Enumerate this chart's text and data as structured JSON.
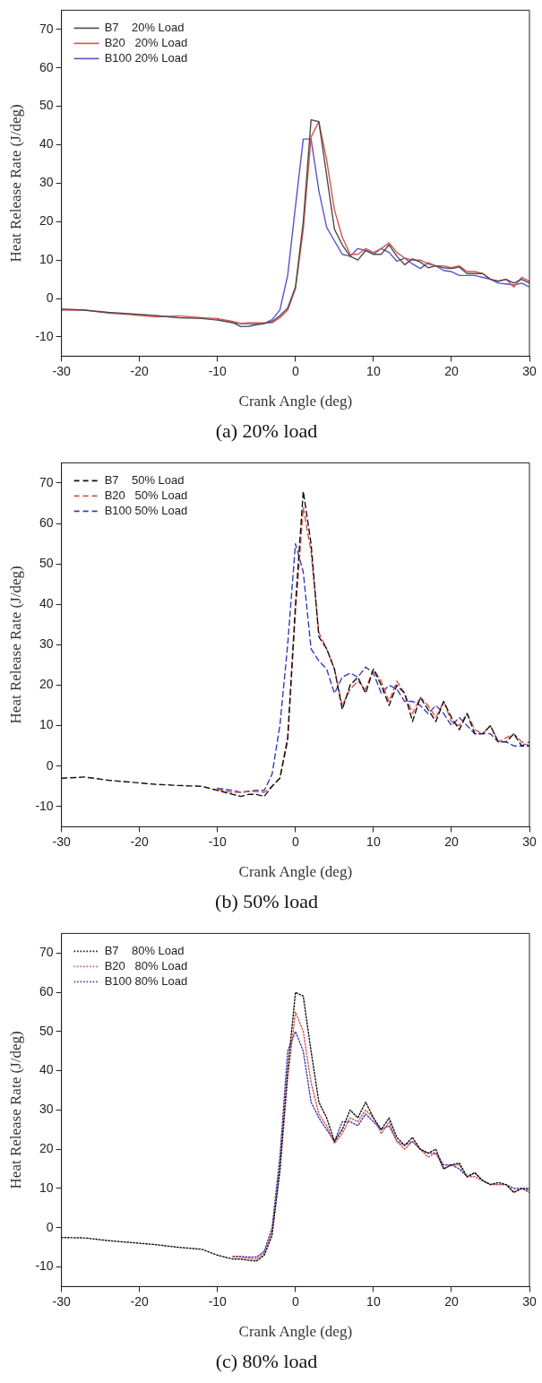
{
  "chart_data": [
    {
      "type": "line",
      "title": "(a) 20% load",
      "xlabel": "Crank Angle (deg)",
      "ylabel": "Heat Release Rate (J/deg)",
      "xlim": [
        -30,
        30
      ],
      "xticks": [
        -30,
        -20,
        -10,
        0,
        10,
        20,
        30
      ],
      "ylim": [
        -15,
        75
      ],
      "yticks": [
        -10,
        0,
        10,
        20,
        30,
        40,
        50,
        60,
        70
      ],
      "grid": false,
      "legend": "top left",
      "marker": "none",
      "line_style": "solid",
      "x": [
        -30,
        -27,
        -24,
        -21,
        -18,
        -15,
        -12,
        -10,
        -8,
        -7,
        -6,
        -5,
        -4,
        -3,
        -2,
        -1,
        0,
        1,
        2,
        3,
        4,
        5,
        6,
        7,
        8,
        9,
        10,
        11,
        12,
        13,
        14,
        15,
        16,
        17,
        18,
        19,
        20,
        21,
        22,
        23,
        24,
        25,
        26,
        27,
        28,
        29,
        30
      ],
      "series": [
        {
          "name": "B7    20% Load",
          "color": "#4d4d4d",
          "values": [
            -2.7,
            -3,
            -3.6,
            -4,
            -4.4,
            -5,
            -5.2,
            -5.6,
            -6.3,
            -7.3,
            -7.2,
            -6.8,
            -6.5,
            -6,
            -4.5,
            -2.5,
            3,
            20,
            46.5,
            46,
            32,
            18,
            14,
            11,
            10,
            12.5,
            11.5,
            11.5,
            14,
            11,
            8.8,
            10.3,
            9.5,
            8,
            8.5,
            8,
            7.8,
            8.2,
            6.5,
            6.5,
            6.5,
            5,
            4.5,
            5,
            4,
            5,
            4
          ]
        },
        {
          "name": "B20   20% Load",
          "color": "#d9534f",
          "values": [
            -3,
            -3,
            -3.8,
            -4.2,
            -4.8,
            -4.5,
            -5,
            -5.2,
            -6,
            -6.5,
            -6.3,
            -6.3,
            -6.3,
            -6.3,
            -5,
            -3,
            2.5,
            18,
            42,
            46,
            36,
            23,
            16,
            11.5,
            11.5,
            13,
            12,
            13,
            14.5,
            12,
            10.5,
            10,
            10,
            9,
            8.5,
            8.5,
            8,
            8.5,
            7,
            7,
            6.5,
            5,
            4.5,
            5,
            3,
            5.5,
            4.5
          ]
        },
        {
          "name": "B100 20% Load",
          "color": "#5555cc",
          "values": [
            null,
            null,
            null,
            null,
            null,
            null,
            null,
            -5.5,
            -6.3,
            -6.5,
            -6.5,
            -6.5,
            -6.5,
            -5.5,
            -3,
            6,
            24,
            41.5,
            41.5,
            28,
            18.5,
            15,
            11.5,
            11,
            13,
            12.5,
            11.5,
            13,
            12,
            9.7,
            10.5,
            9,
            7.8,
            9.3,
            8.5,
            7.3,
            7,
            6,
            6,
            6,
            5.5,
            5,
            4,
            3.8,
            3.5,
            4,
            3
          ]
        }
      ]
    },
    {
      "type": "line",
      "title": "(b) 50% load",
      "xlabel": "Crank Angle (deg)",
      "ylabel": "Heat Release Rate (J/deg)",
      "xlim": [
        -30,
        30
      ],
      "xticks": [
        -30,
        -20,
        -10,
        0,
        10,
        20,
        30
      ],
      "ylim": [
        -15,
        75
      ],
      "yticks": [
        -10,
        0,
        10,
        20,
        30,
        40,
        50,
        60,
        70
      ],
      "grid": false,
      "legend": "top left",
      "marker": "none",
      "line_style": "dashed",
      "x": [
        -30,
        -27,
        -24,
        -21,
        -18,
        -15,
        -12,
        -10,
        -8,
        -7,
        -6,
        -5,
        -4,
        -3,
        -2,
        -1,
        0,
        1,
        2,
        3,
        4,
        5,
        6,
        7,
        8,
        9,
        10,
        11,
        12,
        13,
        14,
        15,
        16,
        17,
        18,
        19,
        20,
        21,
        22,
        23,
        24,
        25,
        26,
        27,
        28,
        29,
        30
      ],
      "series": [
        {
          "name": "B7    50% Load",
          "color": "#111111",
          "values": [
            -3,
            -2.7,
            -3.5,
            -4,
            -4.5,
            -4.8,
            -5,
            -6,
            -7,
            -7.5,
            -7,
            -7,
            -7.5,
            -5,
            -3,
            7,
            40,
            68,
            55,
            32,
            29,
            24,
            14,
            20,
            22,
            18,
            24,
            20,
            15,
            20,
            18,
            11,
            17,
            14,
            11,
            16,
            12,
            9,
            13,
            8,
            8,
            10,
            6,
            6,
            8,
            5,
            5
          ]
        },
        {
          "name": "B20   50% Load",
          "color": "#d9534f",
          "values": [
            null,
            null,
            null,
            null,
            null,
            null,
            null,
            -5.8,
            -6.5,
            -6.5,
            -6.3,
            -6.3,
            -6.5,
            -5,
            -3,
            6,
            38,
            64,
            53,
            33,
            29,
            24,
            15,
            19,
            21,
            19,
            24,
            21,
            16,
            21,
            18,
            13,
            17,
            15,
            12,
            16,
            11,
            10,
            13,
            9,
            8,
            10,
            6,
            7,
            8,
            6,
            5
          ]
        },
        {
          "name": "B100 50% Load",
          "color": "#3a3ab8",
          "values": [
            null,
            null,
            null,
            null,
            null,
            null,
            null,
            -5.5,
            -6,
            -6.5,
            -6.2,
            -6,
            -6,
            -2,
            10,
            30,
            55,
            48,
            29,
            26,
            24,
            18,
            22,
            23,
            22,
            24.5,
            23,
            18,
            20,
            19,
            16,
            16,
            15,
            13,
            15,
            13,
            10,
            12,
            10,
            8,
            8,
            8,
            6,
            6,
            5,
            5,
            6
          ]
        }
      ]
    },
    {
      "type": "line",
      "title": "(c) 80% load",
      "xlabel": "Crank Angle (deg)",
      "ylabel": "Heat Release Rate (J/deg)",
      "xlim": [
        -30,
        30
      ],
      "xticks": [
        -30,
        -20,
        -10,
        0,
        10,
        20,
        30
      ],
      "ylim": [
        -15,
        75
      ],
      "yticks": [
        -10,
        0,
        10,
        20,
        30,
        40,
        50,
        60,
        70
      ],
      "grid": false,
      "legend": "top left",
      "marker": "none",
      "line_style": "dotted",
      "x": [
        -30,
        -27,
        -24,
        -21,
        -18,
        -15,
        -12,
        -10,
        -8,
        -7,
        -6,
        -5,
        -4,
        -3,
        -2,
        -1,
        0,
        1,
        2,
        3,
        4,
        5,
        6,
        7,
        8,
        9,
        10,
        11,
        12,
        13,
        14,
        15,
        16,
        17,
        18,
        19,
        20,
        21,
        22,
        23,
        24,
        25,
        26,
        27,
        28,
        29,
        30
      ],
      "series": [
        {
          "name": "B7    80% Load",
          "color": "#111111",
          "values": [
            -2.5,
            -2.6,
            -3.3,
            -3.8,
            -4.3,
            -5,
            -5.5,
            -7,
            -8,
            -8,
            -8.3,
            -8.5,
            -7,
            -2,
            15,
            40,
            60,
            59,
            45,
            32,
            28,
            22,
            25,
            30,
            28,
            32,
            28,
            25,
            28,
            23,
            21,
            23,
            20,
            19,
            20,
            15,
            16,
            16.5,
            13,
            14,
            12,
            11,
            11.5,
            11,
            9,
            10,
            10
          ]
        },
        {
          "name": "B20   80% Load",
          "color": "#d9534f",
          "values": [
            null,
            null,
            null,
            null,
            null,
            null,
            null,
            null,
            -7.5,
            -7.5,
            -7.8,
            -8,
            -6.5,
            -1,
            14,
            38,
            55,
            50,
            37,
            29,
            26,
            21.5,
            24,
            28,
            27,
            30,
            28,
            24,
            27,
            22,
            20,
            22,
            20,
            18,
            19,
            15,
            16,
            16,
            13,
            13,
            12,
            11,
            11,
            11,
            9,
            10,
            9.5
          ]
        },
        {
          "name": "B100 80% Load",
          "color": "#3a3ab8",
          "values": [
            null,
            null,
            null,
            null,
            null,
            null,
            null,
            null,
            -7.3,
            -7.3,
            -7.5,
            -7.5,
            -6,
            0,
            18,
            45,
            50,
            45,
            32,
            28,
            25,
            22,
            27,
            27,
            26,
            29,
            27,
            25,
            26,
            22,
            21,
            22,
            20,
            19,
            19,
            16,
            16,
            15,
            13,
            14,
            12,
            11,
            11,
            11,
            10,
            10,
            9
          ]
        }
      ]
    }
  ]
}
